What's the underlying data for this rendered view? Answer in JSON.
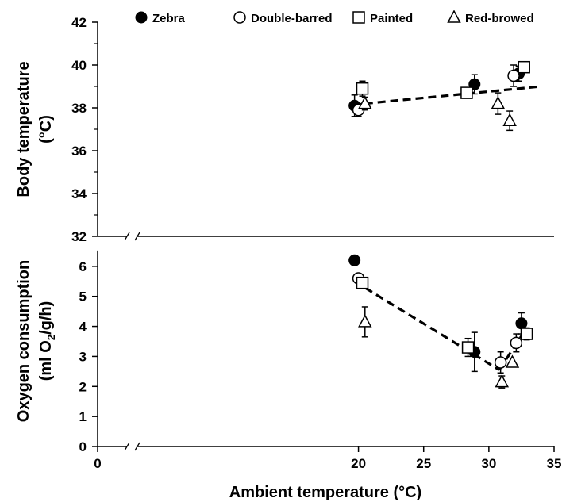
{
  "chart_data": [
    {
      "type": "scatter",
      "panel": "top",
      "ylabel_lines": [
        "Body temperature",
        "(°C)"
      ],
      "ylim": [
        32,
        42
      ],
      "yticks": [
        32,
        34,
        36,
        38,
        40,
        42
      ],
      "series": [
        {
          "name": "Zebra",
          "marker": "filled-circle",
          "points": [
            {
              "x": 19.7,
              "y": 38.1,
              "err": 0.5
            },
            {
              "x": 28.9,
              "y": 39.1,
              "err": 0.45
            },
            {
              "x": 32.3,
              "y": 39.6,
              "err": 0.35
            }
          ]
        },
        {
          "name": "Double-barred",
          "marker": "open-circle",
          "points": [
            {
              "x": 20.0,
              "y": 37.9,
              "err": 0.3
            },
            {
              "x": 31.9,
              "y": 39.5,
              "err": 0.5
            }
          ]
        },
        {
          "name": "Painted",
          "marker": "open-square",
          "points": [
            {
              "x": 20.3,
              "y": 38.9,
              "err": 0.35
            },
            {
              "x": 28.3,
              "y": 38.7,
              "err": 0.2
            },
            {
              "x": 32.7,
              "y": 39.9,
              "err": 0.2
            }
          ]
        },
        {
          "name": "Red-browed",
          "marker": "open-triangle",
          "points": [
            {
              "x": 20.5,
              "y": 38.2,
              "err": 0.3
            },
            {
              "x": 30.7,
              "y": 38.2,
              "err": 0.5
            },
            {
              "x": 31.6,
              "y": 37.4,
              "err": 0.45
            }
          ]
        }
      ],
      "trendlines": [
        {
          "x": [
            20.5,
            34.0
          ],
          "y": [
            38.2,
            39.0
          ]
        }
      ]
    },
    {
      "type": "scatter",
      "panel": "bottom",
      "ylabel_lines": [
        "Oxygen consumption",
        "(ml O",
        "2",
        "/g/h)"
      ],
      "xlabel": "Ambient temperature (°C)",
      "xlim": [
        0,
        35
      ],
      "xticks": [
        0,
        5,
        10,
        15,
        20,
        25,
        30,
        35
      ],
      "xtick_labels": [
        "0",
        "",
        "",
        "",
        "20",
        "25",
        "30",
        "35"
      ],
      "ylim": [
        0,
        7
      ],
      "yticks": [
        0,
        1,
        2,
        3,
        4,
        5,
        6
      ],
      "series": [
        {
          "name": "Zebra",
          "marker": "filled-circle",
          "points": [
            {
              "x": 19.7,
              "y": 6.2,
              "err": 0
            },
            {
              "x": 28.9,
              "y": 3.15,
              "err": 0.65
            },
            {
              "x": 32.5,
              "y": 4.1,
              "err": 0.35
            }
          ]
        },
        {
          "name": "Double-barred",
          "marker": "open-circle",
          "points": [
            {
              "x": 20.0,
              "y": 5.6,
              "err": 0
            },
            {
              "x": 30.9,
              "y": 2.8,
              "err": 0.35
            },
            {
              "x": 32.1,
              "y": 3.45,
              "err": 0.3
            }
          ]
        },
        {
          "name": "Painted",
          "marker": "open-square",
          "points": [
            {
              "x": 20.3,
              "y": 5.45,
              "err": 0
            },
            {
              "x": 28.4,
              "y": 3.3,
              "err": 0.3
            },
            {
              "x": 32.9,
              "y": 3.75,
              "err": 0.2
            }
          ]
        },
        {
          "name": "Red-browed",
          "marker": "open-triangle",
          "points": [
            {
              "x": 20.5,
              "y": 4.15,
              "err": 0.5
            },
            {
              "x": 31.0,
              "y": 2.15,
              "err": 0.2
            },
            {
              "x": 31.8,
              "y": 2.8,
              "err": 0
            }
          ]
        }
      ],
      "trendlines": [
        {
          "x": [
            19.7,
            30.8
          ],
          "y": [
            5.5,
            2.55
          ]
        },
        {
          "x": [
            30.8,
            32.9
          ],
          "y": [
            2.55,
            3.95
          ]
        }
      ]
    }
  ],
  "legend": [
    "Zebra",
    "Double-barred",
    "Painted",
    "Red-browed"
  ]
}
